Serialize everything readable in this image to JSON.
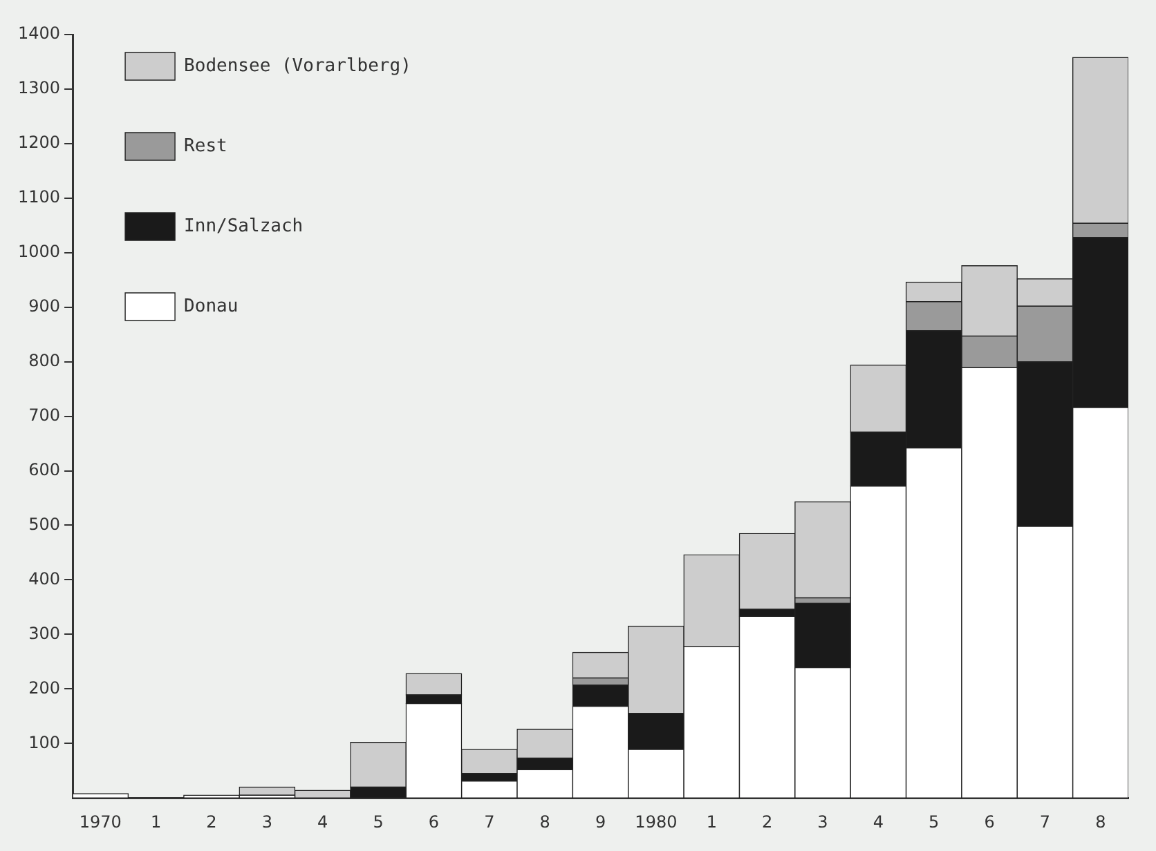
{
  "chart_data": {
    "type": "bar",
    "stacked": true,
    "categories": [
      "1970",
      "1",
      "2",
      "3",
      "4",
      "5",
      "6",
      "7",
      "8",
      "9",
      "1980",
      "1",
      "2",
      "3",
      "4",
      "5",
      "6",
      "7",
      "8"
    ],
    "series": [
      {
        "name": "Donau",
        "color": "#ffffff",
        "values": [
          8,
          0,
          5,
          5,
          0,
          0,
          173,
          31,
          52,
          168,
          89,
          278,
          333,
          239,
          572,
          642,
          789,
          498,
          716
        ]
      },
      {
        "name": "Inn/Salzach",
        "color": "#1a1a1a",
        "values": [
          0,
          0,
          0,
          0,
          0,
          20,
          16,
          14,
          21,
          39,
          66,
          0,
          13,
          118,
          99,
          215,
          0,
          302,
          312
        ]
      },
      {
        "name": "Rest",
        "color": "#9a9a9a",
        "values": [
          0,
          0,
          0,
          0,
          0,
          0,
          0,
          0,
          0,
          13,
          0,
          0,
          0,
          10,
          0,
          53,
          58,
          102,
          26
        ]
      },
      {
        "name": "Bodensee (Vorarlberg)",
        "color": "#cdcdcd",
        "values": [
          0,
          0,
          0,
          15,
          14,
          82,
          39,
          44,
          53,
          47,
          160,
          168,
          139,
          176,
          123,
          36,
          129,
          50,
          304
        ]
      }
    ],
    "ylim": [
      0,
      1400
    ],
    "yticks": [
      100,
      200,
      300,
      400,
      500,
      600,
      700,
      800,
      900,
      1000,
      1100,
      1200,
      1300,
      1400
    ],
    "grid": false,
    "legend": "top left"
  }
}
